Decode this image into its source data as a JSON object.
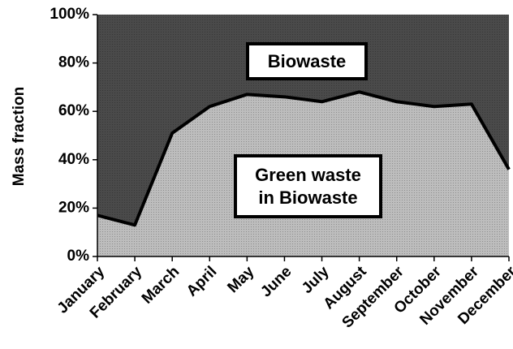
{
  "chart_data": {
    "type": "stacked_area",
    "ylabel": "Mass fraction",
    "categories": [
      "January",
      "February",
      "March",
      "April",
      "May",
      "June",
      "July",
      "August",
      "September",
      "October",
      "November",
      "December"
    ],
    "series": [
      {
        "name": "Green waste in Biowaste",
        "color": "#bdbdbd",
        "values": [
          17,
          13,
          51,
          62,
          67,
          66,
          64,
          68,
          64,
          62,
          63,
          36
        ]
      },
      {
        "name": "Biowaste",
        "color": "#4a4a4a",
        "values": [
          83,
          87,
          49,
          38,
          33,
          34,
          36,
          32,
          36,
          38,
          37,
          64
        ]
      }
    ],
    "ylim": [
      0,
      100
    ],
    "yticks": [
      {
        "value": 0,
        "label": "0%"
      },
      {
        "value": 20,
        "label": "20%"
      },
      {
        "value": 40,
        "label": "40%"
      },
      {
        "value": 60,
        "label": "60%"
      },
      {
        "value": 80,
        "label": "80%"
      },
      {
        "value": 100,
        "label": "100%"
      }
    ]
  }
}
